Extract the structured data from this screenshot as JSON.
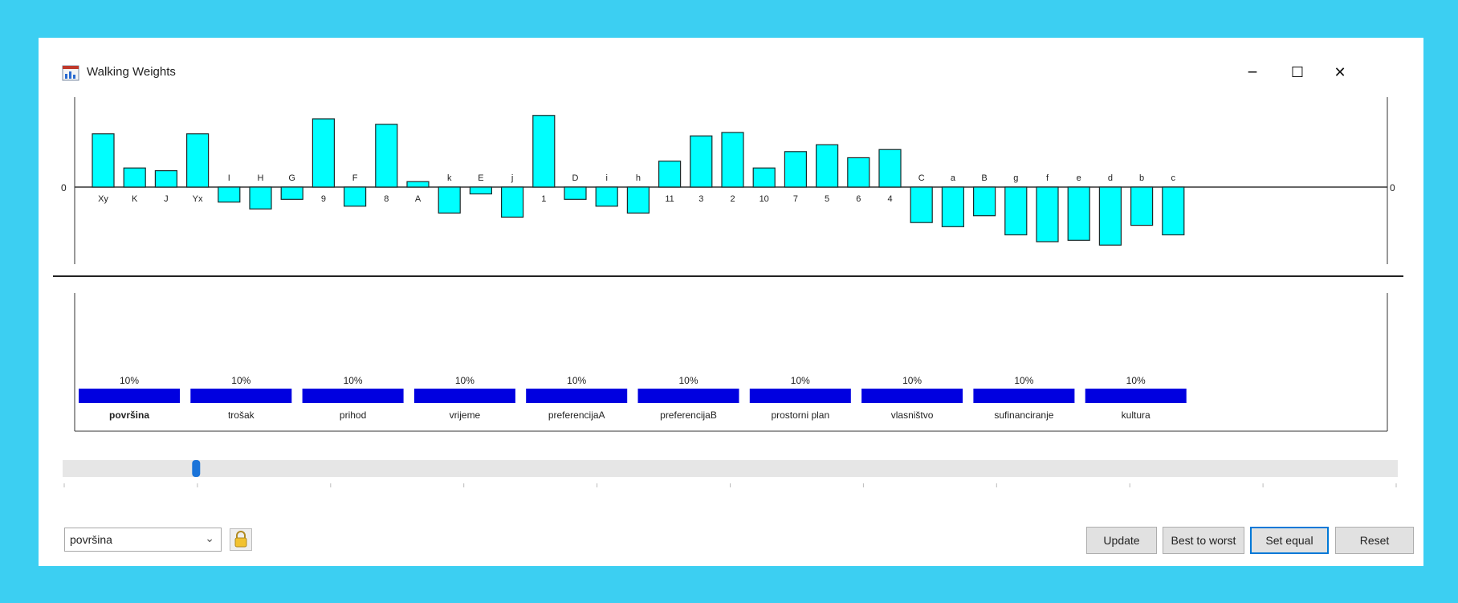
{
  "window": {
    "title": "Walking Weights",
    "icon": "chart-window-icon",
    "controls": {
      "minimize": "−",
      "maximize": "☐",
      "close": "✕"
    }
  },
  "chart_data": [
    {
      "type": "bar",
      "orientation": "vertical",
      "zero_label": "0",
      "zero_label_right": "0",
      "items": [
        {
          "label": "Xy",
          "value": 0.78
        },
        {
          "label": "K",
          "value": 0.28
        },
        {
          "label": "J",
          "value": 0.24
        },
        {
          "label": "Yx",
          "value": 0.78
        },
        {
          "label": "I",
          "value": -0.22
        },
        {
          "label": "H",
          "value": -0.32
        },
        {
          "label": "G",
          "value": -0.18
        },
        {
          "label": "9",
          "value": 1.0
        },
        {
          "label": "F",
          "value": -0.28
        },
        {
          "label": "8",
          "value": 0.92
        },
        {
          "label": "A",
          "value": 0.08
        },
        {
          "label": "k",
          "value": -0.38
        },
        {
          "label": "E",
          "value": -0.1
        },
        {
          "label": "j",
          "value": -0.44
        },
        {
          "label": "1",
          "value": 1.05
        },
        {
          "label": "D",
          "value": -0.18
        },
        {
          "label": "i",
          "value": -0.28
        },
        {
          "label": "h",
          "value": -0.38
        },
        {
          "label": "11",
          "value": 0.38
        },
        {
          "label": "3",
          "value": 0.75
        },
        {
          "label": "2",
          "value": 0.8
        },
        {
          "label": "10",
          "value": 0.28
        },
        {
          "label": "7",
          "value": 0.52
        },
        {
          "label": "5",
          "value": 0.62
        },
        {
          "label": "6",
          "value": 0.43
        },
        {
          "label": "4",
          "value": 0.55
        },
        {
          "label": "C",
          "value": -0.52
        },
        {
          "label": "a",
          "value": -0.58
        },
        {
          "label": "B",
          "value": -0.42
        },
        {
          "label": "g",
          "value": -0.7
        },
        {
          "label": "f",
          "value": -0.8
        },
        {
          "label": "e",
          "value": -0.78
        },
        {
          "label": "d",
          "value": -0.85
        },
        {
          "label": "b",
          "value": -0.56
        },
        {
          "label": "c",
          "value": -0.7
        }
      ],
      "bar_color": "#00ffff",
      "bar_border": "#1a2a2a"
    },
    {
      "type": "bar",
      "orientation": "vertical",
      "unit": "%",
      "items": [
        {
          "label": "površina",
          "value": 10,
          "value_label": "10%",
          "bold": true
        },
        {
          "label": "trošak",
          "value": 10,
          "value_label": "10%"
        },
        {
          "label": "prihod",
          "value": 10,
          "value_label": "10%"
        },
        {
          "label": "vrijeme",
          "value": 10,
          "value_label": "10%"
        },
        {
          "label": "preferencijaA",
          "value": 10,
          "value_label": "10%"
        },
        {
          "label": "preferencijaB",
          "value": 10,
          "value_label": "10%"
        },
        {
          "label": "prostorni plan",
          "value": 10,
          "value_label": "10%"
        },
        {
          "label": "vlasništvo",
          "value": 10,
          "value_label": "10%"
        },
        {
          "label": "sufinanciranje",
          "value": 10,
          "value_label": "10%"
        },
        {
          "label": "kultura",
          "value": 10,
          "value_label": "10%"
        }
      ],
      "bar_color": "#0000e0"
    }
  ],
  "slider": {
    "value_fraction": 0.1
  },
  "bottom": {
    "selected_criterion": "površina",
    "buttons": {
      "update": "Update",
      "best_to_worst": "Best to worst",
      "set_equal": "Set equal",
      "reset": "Reset"
    }
  }
}
